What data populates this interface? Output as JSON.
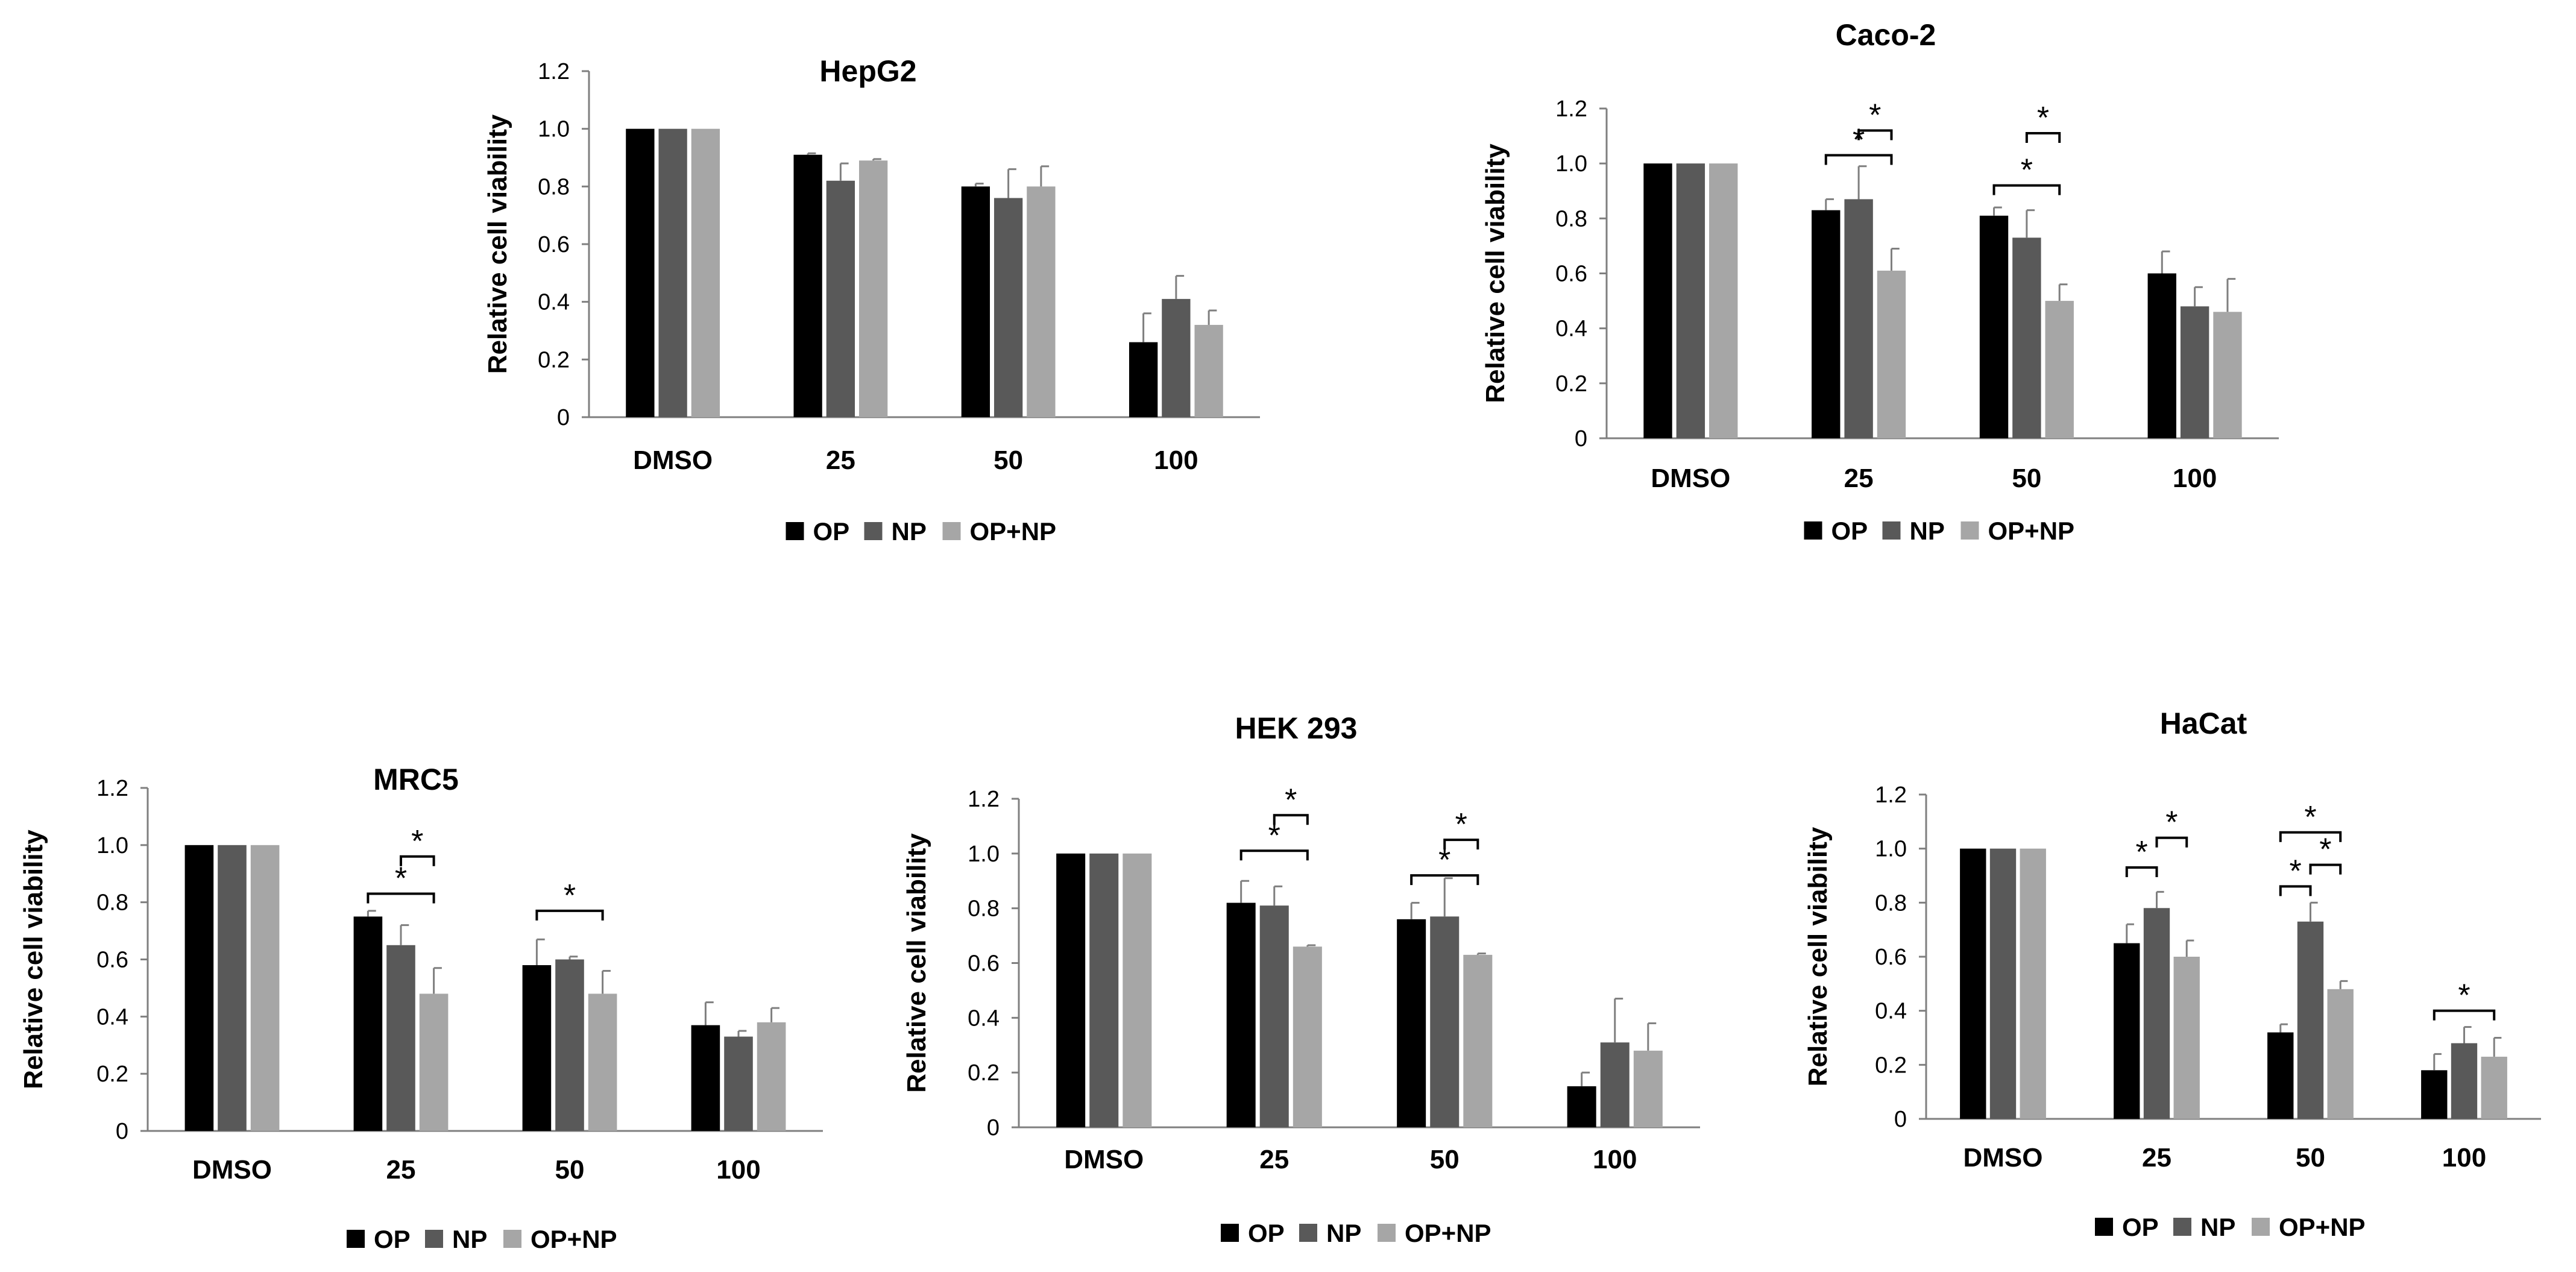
{
  "figure": {
    "series_colors": {
      "OP": "#000000",
      "NP": "#595959",
      "OP+NP": "#a6a6a6"
    },
    "legend_labels": [
      "OP",
      "NP",
      "OP+NP"
    ],
    "significance_mark": "*"
  },
  "chart_data": [
    {
      "id": "hepg2",
      "type": "bar",
      "title": "HepG2",
      "ylabel": "Relative cell viability",
      "xlabel": "",
      "categories": [
        "DMSO",
        "25",
        "50",
        "100"
      ],
      "ylim": [
        0,
        1.2
      ],
      "yticks": [
        0,
        0.2,
        0.4,
        0.6,
        0.8,
        1.0,
        1.2
      ],
      "ytick_labels": [
        "0",
        "0.2",
        "0.4",
        "0.6",
        "0.8",
        "1.0",
        "1.2"
      ],
      "legend": "bottom",
      "series": [
        {
          "name": "OP",
          "values": [
            1.0,
            0.91,
            0.8,
            0.26
          ],
          "errors": [
            0,
            0.005,
            0.01,
            0.1
          ]
        },
        {
          "name": "NP",
          "values": [
            1.0,
            0.82,
            0.76,
            0.41
          ],
          "errors": [
            0,
            0.06,
            0.1,
            0.08
          ]
        },
        {
          "name": "OP+NP",
          "values": [
            1.0,
            0.89,
            0.8,
            0.32
          ],
          "errors": [
            0,
            0.005,
            0.07,
            0.05
          ]
        }
      ],
      "significance": []
    },
    {
      "id": "caco2",
      "type": "bar",
      "title": "Caco-2",
      "ylabel": "Relative cell viability",
      "xlabel": "",
      "categories": [
        "DMSO",
        "25",
        "50",
        "100"
      ],
      "ylim": [
        0,
        1.2
      ],
      "yticks": [
        0,
        0.2,
        0.4,
        0.6,
        0.8,
        1.0,
        1.2
      ],
      "ytick_labels": [
        "0",
        "0.2",
        "0.4",
        "0.6",
        "0.8",
        "1.0",
        "1.2"
      ],
      "legend": "bottom",
      "series": [
        {
          "name": "OP",
          "values": [
            1.0,
            0.83,
            0.81,
            0.6
          ],
          "errors": [
            0,
            0.04,
            0.03,
            0.08
          ]
        },
        {
          "name": "NP",
          "values": [
            1.0,
            0.87,
            0.73,
            0.48
          ],
          "errors": [
            0,
            0.12,
            0.1,
            0.07
          ]
        },
        {
          "name": "OP+NP",
          "values": [
            1.0,
            0.61,
            0.5,
            0.46
          ],
          "errors": [
            0,
            0.08,
            0.06,
            0.12
          ]
        }
      ],
      "significance": [
        {
          "category": 1,
          "from": 0,
          "to": 2,
          "level": 1.03
        },
        {
          "category": 1,
          "from": 1,
          "to": 2,
          "level": 1.12
        },
        {
          "category": 2,
          "from": 0,
          "to": 2,
          "level": 0.92
        },
        {
          "category": 2,
          "from": 1,
          "to": 2,
          "level": 1.11
        }
      ]
    },
    {
      "id": "mrc5",
      "type": "bar",
      "title": "MRC5",
      "ylabel": "Relative cell viability",
      "xlabel": "",
      "categories": [
        "DMSO",
        "25",
        "50",
        "100"
      ],
      "ylim": [
        0,
        1.2
      ],
      "yticks": [
        0,
        0.2,
        0.4,
        0.6,
        0.8,
        1.0,
        1.2
      ],
      "ytick_labels": [
        "0",
        "0.2",
        "0.4",
        "0.6",
        "0.8",
        "1.0",
        "1.2"
      ],
      "legend": "bottom",
      "series": [
        {
          "name": "OP",
          "values": [
            1.0,
            0.75,
            0.58,
            0.37
          ],
          "errors": [
            0,
            0.02,
            0.09,
            0.08
          ]
        },
        {
          "name": "NP",
          "values": [
            1.0,
            0.65,
            0.6,
            0.33
          ],
          "errors": [
            0,
            0.07,
            0.01,
            0.02
          ]
        },
        {
          "name": "OP+NP",
          "values": [
            1.0,
            0.48,
            0.48,
            0.38
          ],
          "errors": [
            0,
            0.09,
            0.08,
            0.05
          ]
        }
      ],
      "significance": [
        {
          "category": 1,
          "from": 0,
          "to": 2,
          "level": 0.83
        },
        {
          "category": 1,
          "from": 1,
          "to": 2,
          "level": 0.96
        },
        {
          "category": 2,
          "from": 0,
          "to": 2,
          "level": 0.77
        }
      ]
    },
    {
      "id": "hek293",
      "type": "bar",
      "title": "HEK 293",
      "ylabel": "Relative cell viability",
      "xlabel": "",
      "categories": [
        "DMSO",
        "25",
        "50",
        "100"
      ],
      "ylim": [
        0,
        1.2
      ],
      "yticks": [
        0,
        0.2,
        0.4,
        0.6,
        0.8,
        1.0,
        1.2
      ],
      "ytick_labels": [
        "0",
        "0.2",
        "0.4",
        "0.6",
        "0.8",
        "1.0",
        "1.2"
      ],
      "legend": "bottom",
      "series": [
        {
          "name": "OP",
          "values": [
            1.0,
            0.82,
            0.76,
            0.15
          ],
          "errors": [
            0,
            0.08,
            0.06,
            0.05
          ]
        },
        {
          "name": "NP",
          "values": [
            1.0,
            0.81,
            0.77,
            0.31
          ],
          "errors": [
            0,
            0.07,
            0.14,
            0.16
          ]
        },
        {
          "name": "OP+NP",
          "values": [
            1.0,
            0.66,
            0.63,
            0.28
          ],
          "errors": [
            0,
            0.005,
            0.005,
            0.1
          ]
        }
      ],
      "significance": [
        {
          "category": 1,
          "from": 0,
          "to": 2,
          "level": 1.01
        },
        {
          "category": 1,
          "from": 1,
          "to": 2,
          "level": 1.14
        },
        {
          "category": 2,
          "from": 0,
          "to": 2,
          "level": 0.92
        },
        {
          "category": 2,
          "from": 1,
          "to": 2,
          "level": 1.05
        }
      ]
    },
    {
      "id": "hacat",
      "type": "bar",
      "title": "HaCat",
      "ylabel": "Relative cell viability",
      "xlabel": "",
      "categories": [
        "DMSO",
        "25",
        "50",
        "100"
      ],
      "ylim": [
        0,
        1.2
      ],
      "yticks": [
        0,
        0.2,
        0.4,
        0.6,
        0.8,
        1.0,
        1.2
      ],
      "ytick_labels": [
        "0",
        "0.2",
        "0.4",
        "0.6",
        "0.8",
        "1.0",
        "1.2"
      ],
      "legend": "bottom",
      "series": [
        {
          "name": "OP",
          "values": [
            1.0,
            0.65,
            0.32,
            0.18
          ],
          "errors": [
            0,
            0.07,
            0.03,
            0.06
          ]
        },
        {
          "name": "NP",
          "values": [
            1.0,
            0.78,
            0.73,
            0.28
          ],
          "errors": [
            0,
            0.06,
            0.07,
            0.06
          ]
        },
        {
          "name": "OP+NP",
          "values": [
            1.0,
            0.6,
            0.48,
            0.23
          ],
          "errors": [
            0,
            0.06,
            0.03,
            0.07
          ]
        }
      ],
      "significance": [
        {
          "category": 1,
          "from": 0,
          "to": 1,
          "level": 0.93
        },
        {
          "category": 1,
          "from": 1,
          "to": 2,
          "level": 1.04
        },
        {
          "category": 2,
          "from": 0,
          "to": 1,
          "level": 0.86
        },
        {
          "category": 2,
          "from": 0,
          "to": 2,
          "level": 1.06
        },
        {
          "category": 2,
          "from": 1,
          "to": 2,
          "level": 0.94
        },
        {
          "category": 3,
          "from": 0,
          "to": 2,
          "level": 0.4
        }
      ]
    }
  ]
}
